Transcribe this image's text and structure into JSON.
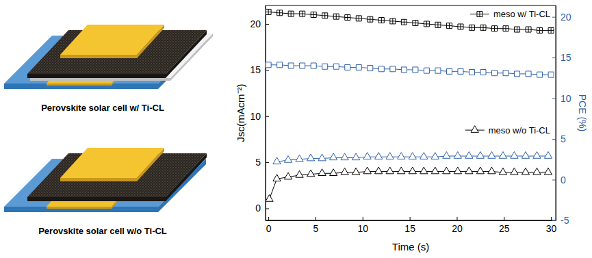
{
  "captions": [
    "Perovskite solar cell w/ Ti-CL",
    "Perovskite solar cell w/o Ti-CL"
  ],
  "chart_data": {
    "type": "line",
    "x_label": "Time (s)",
    "y_label": "Jsc(mAcm⁻²)",
    "y2_label": "PCE (%)",
    "xlim": [
      -0.3,
      30.5
    ],
    "xticks": [
      0,
      5,
      10,
      15,
      20,
      25,
      30
    ],
    "ylim": [
      -1.3,
      22.0
    ],
    "yticks": [
      0,
      5,
      10,
      15,
      20
    ],
    "y2lim": [
      -5,
      21.4
    ],
    "y2ticks": [
      -5,
      0,
      5,
      10,
      15,
      20
    ],
    "legend": "right",
    "series": [
      {
        "name": "meso w/ Ti-CL",
        "color": "#000000",
        "marker": "square_plus",
        "x": [
          0,
          1.2,
          2.4,
          3.6,
          4.8,
          6,
          7.2,
          8.4,
          9.6,
          10.8,
          12,
          13.2,
          14.4,
          15.6,
          16.8,
          18,
          19.2,
          20.4,
          21.6,
          22.8,
          24,
          25.2,
          26.4,
          27.6,
          28.8,
          30
        ],
        "values": [
          21.3,
          21.2,
          21.1,
          21.1,
          21.0,
          20.9,
          20.8,
          20.7,
          20.6,
          20.5,
          20.4,
          20.3,
          20.2,
          20.1,
          20.0,
          19.9,
          19.8,
          19.7,
          19.6,
          19.6,
          19.5,
          19.5,
          19.4,
          19.4,
          19.3,
          19.3
        ]
      },
      {
        "color": "#2e5fa8",
        "marker": "square",
        "axis": "y2",
        "x": [
          0,
          1.2,
          2.4,
          3.6,
          4.8,
          6,
          7.2,
          8.4,
          9.6,
          10.8,
          12,
          13.2,
          14.4,
          15.6,
          16.8,
          18,
          19.2,
          20.4,
          21.6,
          22.8,
          24,
          25.2,
          26.4,
          27.6,
          28.8,
          30
        ],
        "values": [
          14.1,
          14.1,
          14.0,
          14.0,
          14.0,
          13.9,
          13.9,
          13.8,
          13.8,
          13.7,
          13.6,
          13.6,
          13.5,
          13.5,
          13.4,
          13.4,
          13.3,
          13.3,
          13.2,
          13.2,
          13.1,
          13.1,
          13.0,
          13.0,
          12.9,
          12.9
        ]
      },
      {
        "name": "meso w/o Ti-CL",
        "color": "#000000",
        "marker": "triangle",
        "x": [
          0.1,
          0.9,
          2.1,
          3.3,
          4.5,
          5.7,
          6.9,
          8.1,
          9.3,
          10.5,
          11.7,
          12.9,
          14.1,
          15.3,
          16.5,
          17.7,
          18.9,
          20.1,
          21.3,
          22.5,
          23.7,
          24.9,
          26.1,
          27.3,
          28.5,
          29.7
        ],
        "values": [
          1.0,
          3.2,
          3.4,
          3.6,
          3.7,
          3.8,
          3.8,
          3.9,
          3.9,
          4.0,
          4.0,
          4.0,
          4.0,
          4.0,
          4.0,
          4.0,
          4.0,
          4.0,
          4.0,
          4.0,
          4.0,
          3.9,
          3.9,
          3.9,
          3.9,
          3.9
        ]
      },
      {
        "color": "#2e5fa8",
        "marker": "triangle",
        "axis": "y2",
        "x": [
          0.1,
          0.9,
          2.1,
          3.3,
          4.5,
          5.7,
          6.9,
          8.1,
          9.3,
          10.5,
          11.7,
          12.9,
          14.1,
          15.3,
          16.5,
          17.7,
          18.9,
          20.1,
          21.3,
          22.5,
          23.7,
          24.9,
          26.1,
          27.3,
          28.5,
          29.7
        ],
        "values": [
          null,
          2.2,
          2.4,
          2.5,
          2.6,
          2.6,
          2.7,
          2.7,
          2.7,
          2.8,
          2.8,
          2.8,
          2.8,
          2.8,
          2.8,
          2.8,
          2.9,
          2.9,
          2.9,
          2.9,
          2.9,
          2.9,
          2.9,
          2.9,
          2.9,
          2.9
        ]
      }
    ]
  }
}
